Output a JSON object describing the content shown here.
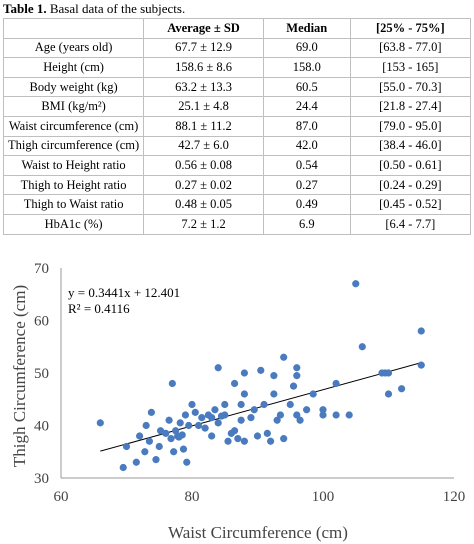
{
  "caption": {
    "label": "Table 1.",
    "text": " Basal data of the subjects."
  },
  "table": {
    "headers": [
      "",
      "Average ± SD",
      "Median",
      "[25% - 75%]"
    ],
    "rows": [
      [
        "Age (years old)",
        "67.7 ± 12.9",
        "69.0",
        "[63.8 - 77.0]"
      ],
      [
        "Height (cm)",
        "158.6 ± 8.6",
        "158.0",
        "[153 - 165]"
      ],
      [
        "Body weight (kg)",
        "63.2 ± 13.3",
        "60.5",
        "[55.0 - 70.3]"
      ],
      [
        "BMI (kg/m²)",
        "25.1 ± 4.8",
        "24.4",
        "[21.8 - 27.4]"
      ],
      [
        "Waist circumference (cm)",
        "88.1 ± 11.2",
        "87.0",
        "[79.0 - 95.0]"
      ],
      [
        "Thigh circumference (cm)",
        "42.7 ± 6.0",
        "42.0",
        "[38.4 - 46.0]"
      ],
      [
        "Waist to Height ratio",
        "0.56 ± 0.08",
        "0.54",
        "[0.50 - 0.61]"
      ],
      [
        "Thigh to Height ratio",
        "0.27 ± 0.02",
        "0.27",
        "[0.24 - 0.29]"
      ],
      [
        "Thigh to Waist ratio",
        "0.48 ± 0.05",
        "0.49",
        "[0.45 - 0.52]"
      ],
      [
        "HbA1c (%)",
        "7.2 ± 1.2",
        "6.9",
        "[6.4 - 7.7]"
      ]
    ]
  },
  "chart_data": {
    "type": "scatter",
    "xlabel": "Waist Circumference (cm)",
    "ylabel": "Thigh Circumference (cm)",
    "xlim": [
      60,
      120
    ],
    "ylim": [
      30,
      70
    ],
    "xticks": [
      60,
      80,
      100,
      120
    ],
    "yticks": [
      30,
      40,
      50,
      60,
      70
    ],
    "grid": false,
    "marker_color": "#4a7bbf",
    "trendline": {
      "slope": 0.3441,
      "intercept": 12.401,
      "x_range": [
        66,
        115
      ]
    },
    "annotations": [
      "y = 0.3441x + 12.401",
      "R² = 0.4116"
    ],
    "points": [
      [
        66,
        40.5
      ],
      [
        69.5,
        32
      ],
      [
        70,
        36
      ],
      [
        71.5,
        33
      ],
      [
        72,
        38
      ],
      [
        72.8,
        35
      ],
      [
        73,
        40
      ],
      [
        73.5,
        37
      ],
      [
        73.8,
        42.5
      ],
      [
        74.5,
        33.5
      ],
      [
        75,
        36
      ],
      [
        75.2,
        39
      ],
      [
        76,
        38.5
      ],
      [
        76.5,
        41
      ],
      [
        76.8,
        37.5
      ],
      [
        77,
        48
      ],
      [
        77.2,
        35
      ],
      [
        77.5,
        39
      ],
      [
        77.8,
        38
      ],
      [
        78,
        37.8
      ],
      [
        78.2,
        40.5
      ],
      [
        78.5,
        38.2
      ],
      [
        78.7,
        35.5
      ],
      [
        79,
        42
      ],
      [
        79.2,
        33
      ],
      [
        79.5,
        40
      ],
      [
        80,
        44
      ],
      [
        80.5,
        42.5
      ],
      [
        81,
        40
      ],
      [
        81.5,
        41.5
      ],
      [
        82,
        39.5
      ],
      [
        82.5,
        42
      ],
      [
        83,
        38
      ],
      [
        83,
        41.5
      ],
      [
        83.5,
        43
      ],
      [
        84,
        40.5
      ],
      [
        84,
        51
      ],
      [
        84.5,
        41.8
      ],
      [
        85,
        42
      ],
      [
        85,
        44
      ],
      [
        85.5,
        37
      ],
      [
        86,
        38.5
      ],
      [
        86.5,
        39
      ],
      [
        86.5,
        48
      ],
      [
        87,
        37.5
      ],
      [
        87.5,
        41
      ],
      [
        87.5,
        44
      ],
      [
        88,
        46
      ],
      [
        88,
        50
      ],
      [
        88,
        37
      ],
      [
        89,
        41.5
      ],
      [
        89.5,
        43
      ],
      [
        90,
        38
      ],
      [
        90.5,
        50.5
      ],
      [
        91,
        44
      ],
      [
        91.5,
        38.5
      ],
      [
        92,
        37
      ],
      [
        92.5,
        49.5
      ],
      [
        92.5,
        46
      ],
      [
        93,
        41
      ],
      [
        93.5,
        42
      ],
      [
        94,
        53
      ],
      [
        94,
        37.5
      ],
      [
        95,
        44
      ],
      [
        95.5,
        47.5
      ],
      [
        96,
        49.5
      ],
      [
        96,
        51
      ],
      [
        96,
        42
      ],
      [
        96.5,
        41
      ],
      [
        97.5,
        43
      ],
      [
        98.5,
        46
      ],
      [
        100,
        43
      ],
      [
        100,
        42
      ],
      [
        102,
        48
      ],
      [
        102,
        42
      ],
      [
        104,
        42
      ],
      [
        105,
        67
      ],
      [
        106,
        55
      ],
      [
        109,
        50
      ],
      [
        109.5,
        50
      ],
      [
        110,
        46
      ],
      [
        110,
        50
      ],
      [
        112,
        47
      ],
      [
        115,
        58
      ],
      [
        115,
        51.5
      ]
    ]
  }
}
